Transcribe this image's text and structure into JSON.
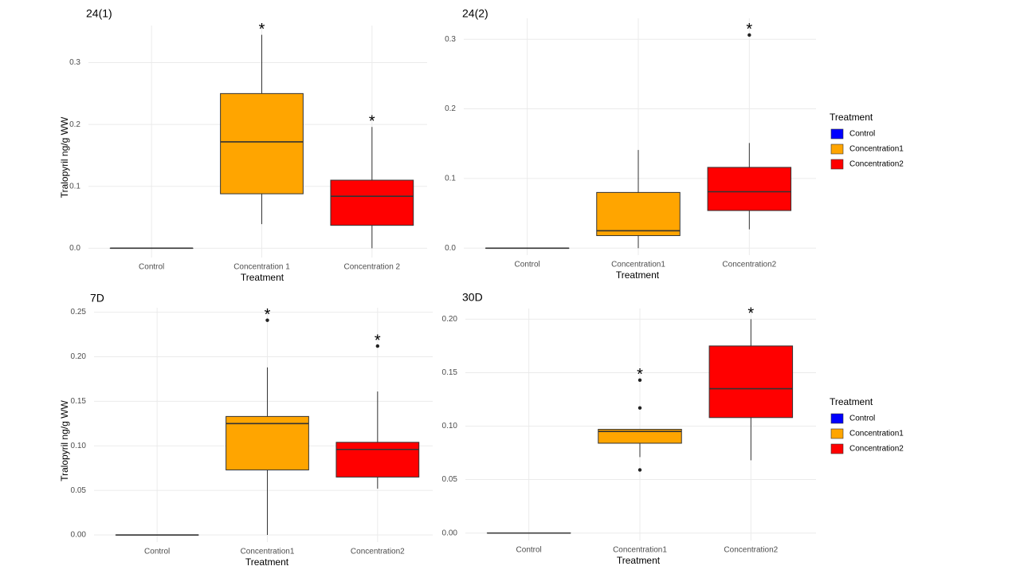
{
  "chart_data": [
    {
      "type": "box",
      "title": "24(1)",
      "x_label": "Treatment",
      "y_label": "Tralopyril ng/g WW",
      "categories": [
        "Control",
        "Concentration 1",
        "Concentration 2"
      ],
      "ylim": [
        -0.015,
        0.36
      ],
      "yticks": [
        {
          "value": 0,
          "label": "0.0"
        },
        0.1,
        0.2,
        0.3
      ],
      "grid": true,
      "series": [
        {
          "color": "#0000ff",
          "min": 0,
          "q1": 0,
          "median": 0,
          "q3": 0,
          "max": 0,
          "outliers": []
        },
        {
          "color": "#ffa500",
          "min": 0.039,
          "q1": 0.088,
          "median": 0.172,
          "q3": 0.25,
          "max": 0.345,
          "outliers": [],
          "annotation": "*"
        },
        {
          "color": "#ff0000",
          "min": 0,
          "q1": 0.037,
          "median": 0.084,
          "q3": 0.11,
          "max": 0.196,
          "outliers": [],
          "annotation": "*"
        }
      ]
    },
    {
      "type": "box",
      "title": "24(2)",
      "x_label": "Treatment",
      "legend_title": "Treatment",
      "categories": [
        "Control",
        "Concentration1",
        "Concentration2"
      ],
      "ylim": [
        -0.01,
        0.33
      ],
      "yticks": [
        {
          "value": 0,
          "label": "0.0"
        },
        0.1,
        0.2,
        0.3
      ],
      "grid": true,
      "series": [
        {
          "name": "Control",
          "color": "#0000ff",
          "min": 0,
          "q1": 0,
          "median": 0,
          "q3": 0,
          "max": 0,
          "outliers": []
        },
        {
          "name": "Concentration1",
          "color": "#ffa500",
          "min": 0,
          "q1": 0.018,
          "median": 0.025,
          "q3": 0.08,
          "max": 0.141,
          "outliers": []
        },
        {
          "name": "Concentration2",
          "color": "#ff0000",
          "min": 0.027,
          "q1": 0.054,
          "median": 0.081,
          "q3": 0.116,
          "max": 0.151,
          "outliers": [
            0.306
          ],
          "annotation": "*"
        }
      ]
    },
    {
      "type": "box",
      "title": "7D",
      "x_label": "Treatment",
      "y_label": "Tralopyril ng/g WW",
      "categories": [
        "Control",
        "Concentration1",
        "Concentration2"
      ],
      "ylim": [
        -0.008,
        0.255
      ],
      "yticks": [
        {
          "value": 0,
          "label": "0.00"
        },
        0.05,
        {
          "value": 0.1,
          "label": "0.10"
        },
        0.15,
        {
          "value": 0.2,
          "label": "0.20"
        },
        0.25
      ],
      "grid": true,
      "series": [
        {
          "color": "#0000ff",
          "min": 0,
          "q1": 0,
          "median": 0,
          "q3": 0,
          "max": 0,
          "outliers": []
        },
        {
          "color": "#ffa500",
          "min": 0,
          "q1": 0.073,
          "median": 0.125,
          "q3": 0.133,
          "max": 0.188,
          "outliers": [
            0.241
          ],
          "annotation": "*"
        },
        {
          "color": "#ff0000",
          "min": 0.052,
          "q1": 0.065,
          "median": 0.096,
          "q3": 0.104,
          "max": 0.161,
          "outliers": [
            0.212
          ],
          "annotation": "*"
        }
      ]
    },
    {
      "type": "box",
      "title": "30D",
      "x_label": "Treatment",
      "legend_title": "Treatment",
      "categories": [
        "Control",
        "Concentration1",
        "Concentration2"
      ],
      "ylim": [
        -0.007,
        0.21
      ],
      "yticks": [
        {
          "value": 0,
          "label": "0.00"
        },
        0.05,
        {
          "value": 0.1,
          "label": "0.10"
        },
        0.15,
        {
          "value": 0.2,
          "label": "0.20"
        }
      ],
      "grid": true,
      "series": [
        {
          "name": "Control",
          "color": "#0000ff",
          "min": 0,
          "q1": 0,
          "median": 0,
          "q3": 0,
          "max": 0,
          "outliers": []
        },
        {
          "name": "Concentration1",
          "color": "#ffa500",
          "min": 0.071,
          "q1": 0.084,
          "median": 0.095,
          "q3": 0.097,
          "max": 0.097,
          "outliers": [
            0.143,
            0.117,
            0.059
          ],
          "annotation": "*"
        },
        {
          "name": "Concentration2",
          "color": "#ff0000",
          "min": 0.068,
          "q1": 0.108,
          "median": 0.135,
          "q3": 0.175,
          "max": 0.2,
          "outliers": [],
          "annotation": "*"
        }
      ]
    }
  ]
}
